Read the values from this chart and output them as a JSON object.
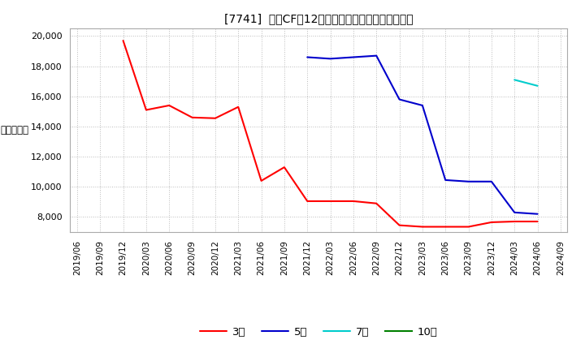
{
  "title": "[7741]  投賄CFの12か月移動合計の標準偏差の推移",
  "ylabel": "（百万円）",
  "ylim": [
    7000,
    20500
  ],
  "yticks": [
    8000,
    10000,
    12000,
    14000,
    16000,
    18000,
    20000
  ],
  "background_color": "#ffffff",
  "grid_color": "#aaaaaa",
  "series_order": [
    "3年",
    "5年",
    "7年",
    "10年"
  ],
  "series": {
    "3年": {
      "color": "#ff0000",
      "linewidth": 1.5,
      "data": [
        [
          "2019/12",
          19700
        ],
        [
          "2020/03",
          15100
        ],
        [
          "2020/06",
          15400
        ],
        [
          "2020/09",
          14600
        ],
        [
          "2020/12",
          14550
        ],
        [
          "2021/03",
          15300
        ],
        [
          "2021/06",
          10400
        ],
        [
          "2021/09",
          11300
        ],
        [
          "2021/12",
          9050
        ],
        [
          "2022/03",
          9050
        ],
        [
          "2022/06",
          9050
        ],
        [
          "2022/09",
          8900
        ],
        [
          "2022/12",
          7450
        ],
        [
          "2023/03",
          7350
        ],
        [
          "2023/06",
          7350
        ],
        [
          "2023/09",
          7350
        ],
        [
          "2023/12",
          7650
        ],
        [
          "2024/03",
          7700
        ],
        [
          "2024/06",
          7700
        ]
      ]
    },
    "5年": {
      "color": "#0000cc",
      "linewidth": 1.5,
      "data": [
        [
          "2021/12",
          18600
        ],
        [
          "2022/03",
          18500
        ],
        [
          "2022/06",
          18600
        ],
        [
          "2022/09",
          18700
        ],
        [
          "2022/12",
          15800
        ],
        [
          "2023/03",
          15400
        ],
        [
          "2023/06",
          10450
        ],
        [
          "2023/09",
          10350
        ],
        [
          "2023/12",
          10350
        ],
        [
          "2024/03",
          8300
        ],
        [
          "2024/06",
          8200
        ]
      ]
    },
    "7年": {
      "color": "#00cccc",
      "linewidth": 1.5,
      "data": [
        [
          "2024/03",
          17100
        ],
        [
          "2024/06",
          16700
        ]
      ]
    },
    "10年": {
      "color": "#008000",
      "linewidth": 1.5,
      "data": []
    }
  },
  "xtick_labels": [
    "2019/06",
    "2019/09",
    "2019/12",
    "2020/03",
    "2020/06",
    "2020/09",
    "2020/12",
    "2021/03",
    "2021/06",
    "2021/09",
    "2021/12",
    "2022/03",
    "2022/06",
    "2022/09",
    "2022/12",
    "2023/03",
    "2023/06",
    "2023/09",
    "2023/12",
    "2024/03",
    "2024/06",
    "2024/09"
  ]
}
